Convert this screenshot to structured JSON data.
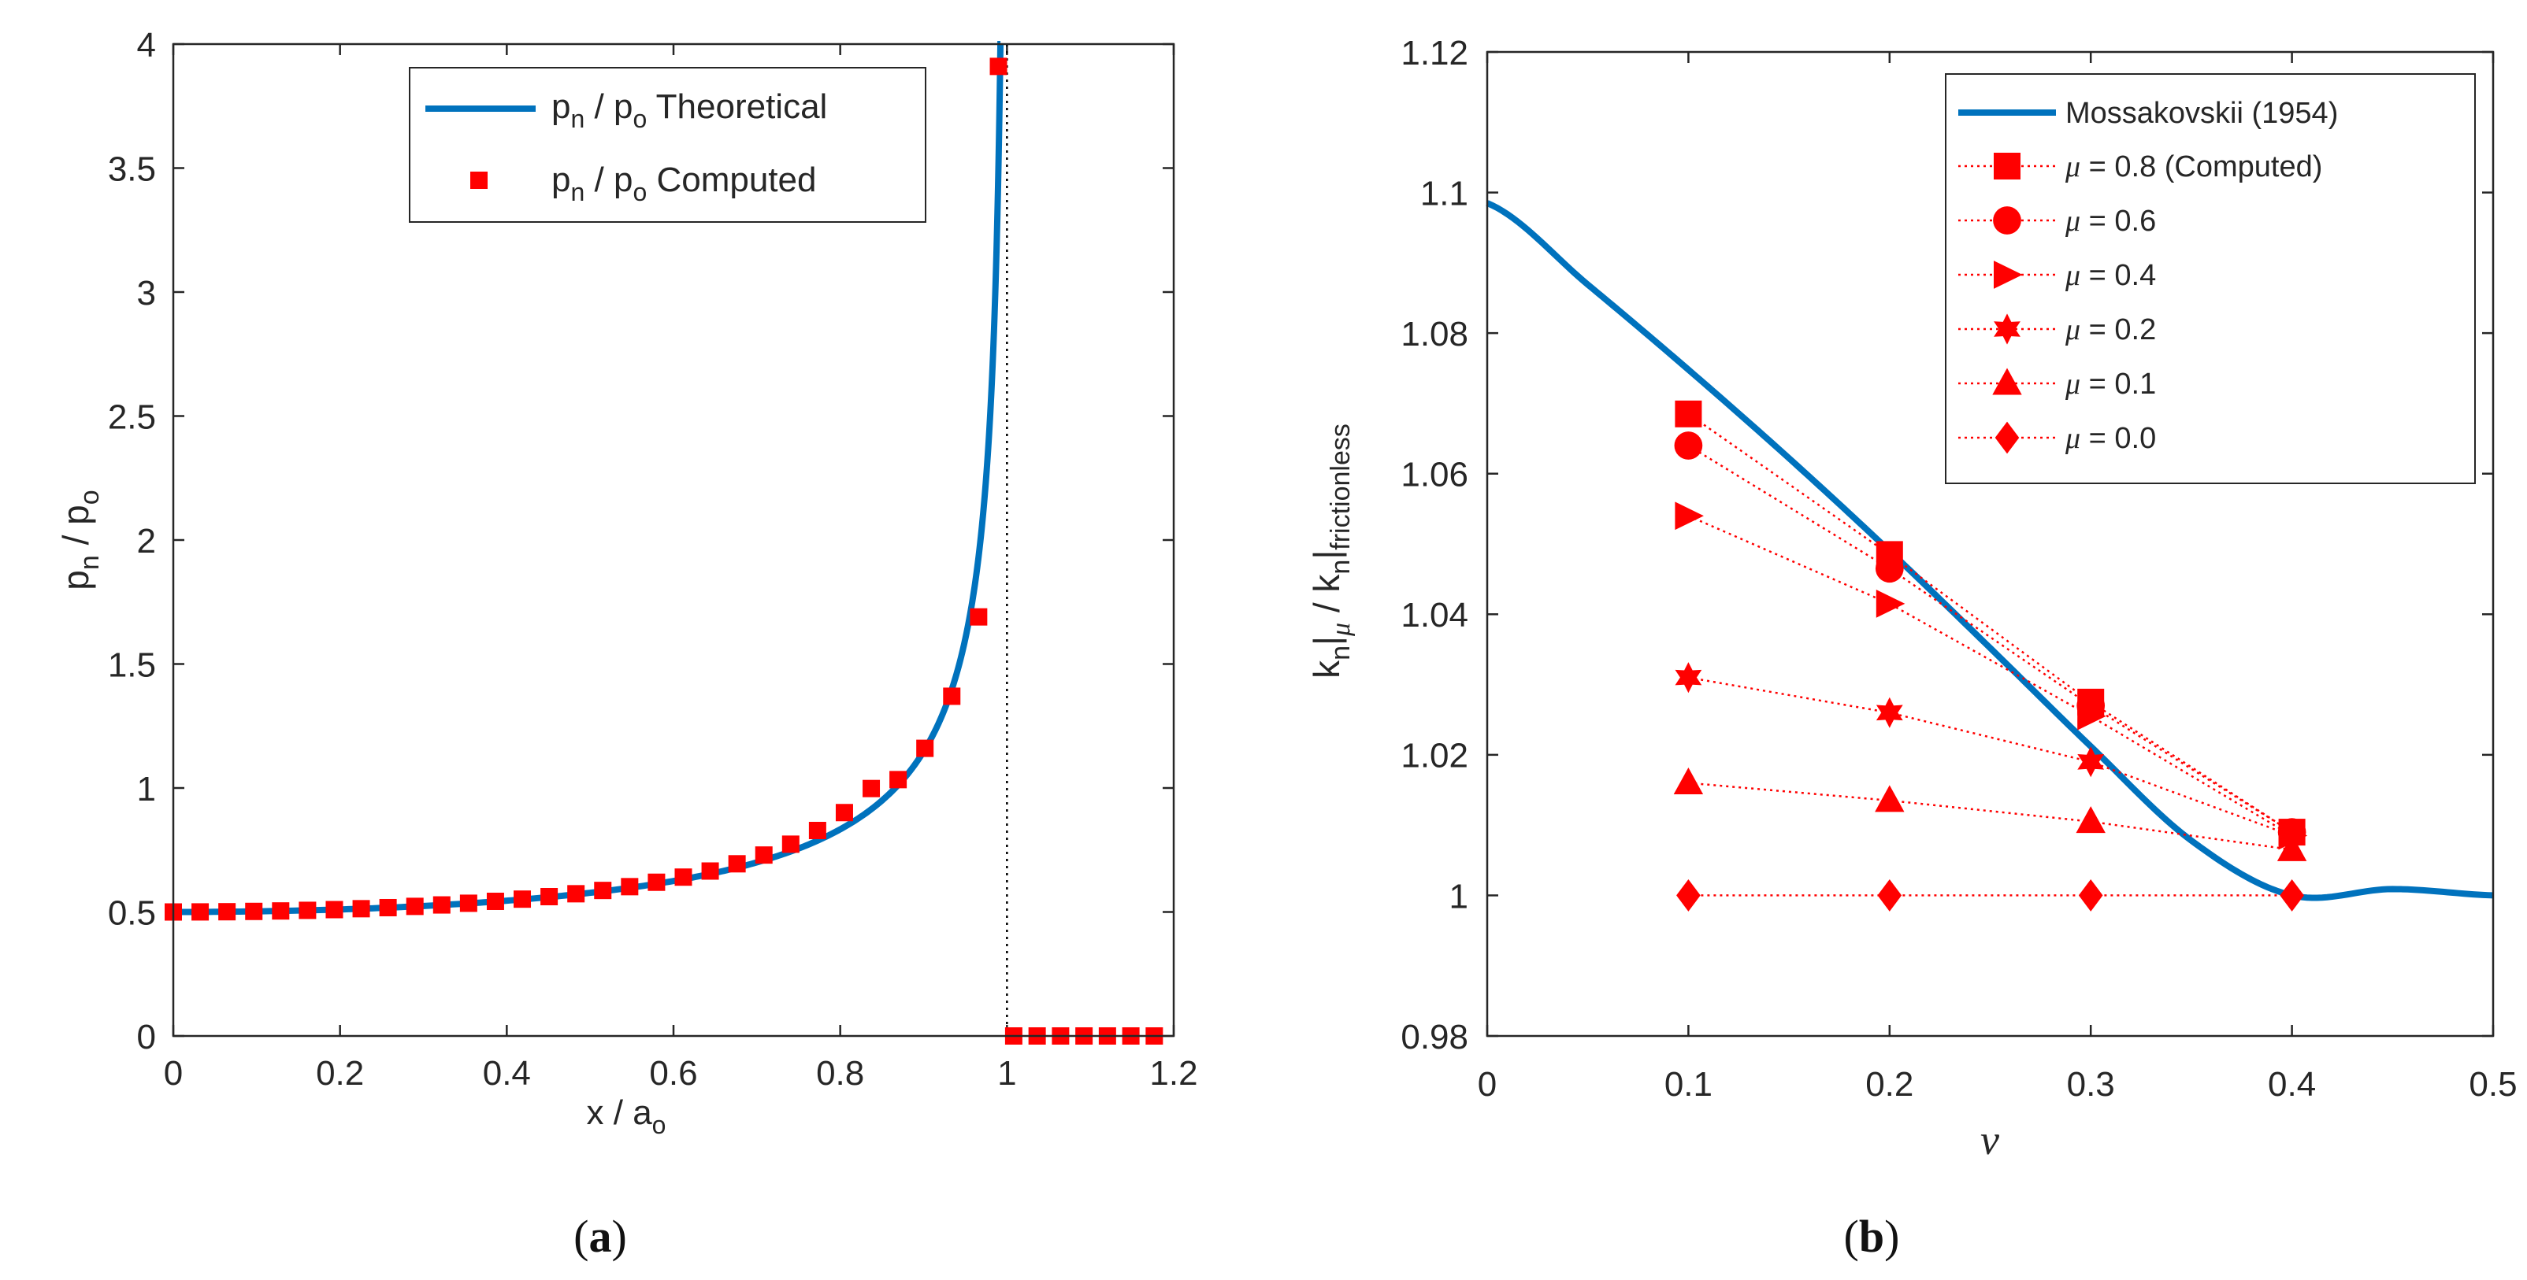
{
  "colors": {
    "theory": "#0072BD",
    "computed": "#FF0000",
    "axis": "#262626",
    "dotted": "#000000"
  },
  "chart_data": [
    {
      "id": "a",
      "type": "scatter",
      "caption_open": "(",
      "caption_letter": "a",
      "caption_close": ")",
      "xlabel": {
        "main": "x / a",
        "sub": "o"
      },
      "ylabel": {
        "p1": "p",
        "s1": "n",
        "p2": " / p",
        "s2": "o"
      },
      "xlim": [
        0,
        1.2
      ],
      "ylim": [
        0,
        4
      ],
      "xticks": [
        0,
        0.2,
        0.4,
        0.6,
        0.8,
        1,
        1.2
      ],
      "xtick_labels": [
        "0",
        "0.2",
        "0.4",
        "0.6",
        "0.8",
        "1",
        "1.2"
      ],
      "yticks": [
        0,
        0.5,
        1,
        1.5,
        2,
        2.5,
        3,
        3.5,
        4
      ],
      "ytick_labels": [
        "0",
        "0.5",
        "1",
        "1.5",
        "2",
        "2.5",
        "3",
        "3.5",
        "4"
      ],
      "vline_x": 1,
      "legend": [
        {
          "p1": "p",
          "s1": "n",
          "p2": " / p",
          "s2": "o",
          "rest": " Theoretical"
        },
        {
          "p1": "p",
          "s1": "n",
          "p2": " / p",
          "s2": "o",
          "rest": " Computed"
        }
      ],
      "series": [
        {
          "name": "Theoretical",
          "kind": "line",
          "formula": "0.5/sqrt(1-(x)^2)",
          "x_range": [
            0,
            0.9922
          ]
        },
        {
          "name": "Computed",
          "kind": "markers",
          "marker": "square",
          "x": [
            0,
            0.0322,
            0.0644,
            0.0966,
            0.1288,
            0.161,
            0.1932,
            0.2254,
            0.2576,
            0.2898,
            0.322,
            0.3542,
            0.3864,
            0.4186,
            0.4508,
            0.483,
            0.5152,
            0.5474,
            0.5796,
            0.6118,
            0.644,
            0.6762,
            0.7084,
            0.7406,
            0.7728,
            0.805,
            0.8372,
            0.8694,
            0.9016,
            0.9338,
            0.966,
            0.9898,
            1.0081,
            1.0362,
            1.0643,
            1.0924,
            1.1205,
            1.1486,
            1.1767
          ],
          "y": [
            0.5,
            0.5003,
            0.501,
            0.5023,
            0.5042,
            0.5066,
            0.5095,
            0.5132,
            0.5175,
            0.5226,
            0.5284,
            0.5352,
            0.5429,
            0.5518,
            0.5619,
            0.5735,
            0.5868,
            0.6021,
            0.6199,
            0.6406,
            0.6651,
            0.6943,
            0.7296,
            0.7734,
            0.8286,
            0.9008,
            0.9978,
            1.0338,
            1.16,
            1.37,
            1.69,
            3.91,
            0,
            0,
            0,
            0,
            0,
            0,
            0
          ]
        }
      ]
    },
    {
      "id": "b",
      "type": "line",
      "caption_open": "(",
      "caption_letter": "b",
      "caption_close": ")",
      "xlabel": {
        "main": "ν"
      },
      "ylabel": {
        "p1": "k",
        "s1": "n",
        "p2": "|",
        "s2": "μ",
        "p3": " / k",
        "s3": "n",
        "p4": "|",
        "s4": "frictionless"
      },
      "xlim": [
        0,
        0.5
      ],
      "ylim": [
        0.98,
        1.12
      ],
      "xticks": [
        0,
        0.1,
        0.2,
        0.3,
        0.4,
        0.5
      ],
      "xtick_labels": [
        "0",
        "0.1",
        "0.2",
        "0.3",
        "0.4",
        "0.5"
      ],
      "yticks": [
        0.98,
        1,
        1.02,
        1.04,
        1.06,
        1.08,
        1.1,
        1.12
      ],
      "ytick_labels": [
        "0.98",
        "1",
        "1.02",
        "1.04",
        "1.06",
        "1.08",
        "1.1",
        "1.12"
      ],
      "legend": [
        {
          "label": "Mossakovskii (1954)"
        },
        {
          "mu": "μ",
          "label": " = 0.8 (Computed)"
        },
        {
          "mu": "μ",
          "label": " = 0.6"
        },
        {
          "mu": "μ",
          "label": " = 0.4"
        },
        {
          "mu": "μ",
          "label": " = 0.2"
        },
        {
          "mu": "μ",
          "label": " = 0.1"
        },
        {
          "mu": "μ",
          "label": " = 0.0"
        }
      ],
      "series": [
        {
          "name": "Mossakovskii (1954)",
          "kind": "line",
          "x": [
            0,
            0.05,
            0.1,
            0.15,
            0.2,
            0.25,
            0.3,
            0.35,
            0.4,
            0.45,
            0.5
          ],
          "y": [
            1.0985,
            1.0869,
            1.0748,
            1.0622,
            1.049,
            1.0352,
            1.0212,
            1.0078,
            1.0,
            1.0009,
            1.0
          ]
        },
        {
          "name": "μ = 0.8 (Computed)",
          "marker": "square",
          "x": [
            0.1,
            0.2,
            0.3,
            0.4
          ],
          "y": [
            1.0685,
            1.0485,
            1.0275,
            1.009
          ]
        },
        {
          "name": "μ = 0.6",
          "marker": "circle",
          "x": [
            0.1,
            0.2,
            0.3,
            0.4
          ],
          "y": [
            1.064,
            1.0465,
            1.027,
            1.009
          ]
        },
        {
          "name": "μ = 0.4",
          "marker": "triangle-right",
          "x": [
            0.1,
            0.2,
            0.3,
            0.4
          ],
          "y": [
            1.054,
            1.0415,
            1.0255,
            1.0085
          ]
        },
        {
          "name": "μ = 0.2",
          "marker": "hexagram",
          "x": [
            0.1,
            0.2,
            0.3,
            0.4
          ],
          "y": [
            1.031,
            1.026,
            1.019,
            1.0085
          ]
        },
        {
          "name": "μ = 0.1",
          "marker": "triangle-up",
          "x": [
            0.1,
            0.2,
            0.3,
            0.4
          ],
          "y": [
            1.016,
            1.0135,
            1.0105,
            1.0065
          ]
        },
        {
          "name": "μ = 0.0",
          "marker": "diamond",
          "x": [
            0.1,
            0.2,
            0.3,
            0.4
          ],
          "y": [
            1.0,
            1.0,
            1.0,
            1.0
          ]
        }
      ]
    }
  ]
}
